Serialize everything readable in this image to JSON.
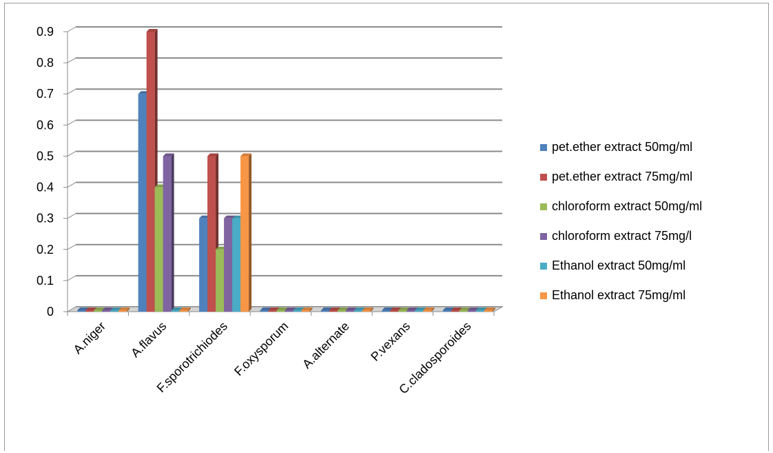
{
  "chart_data": {
    "type": "bar",
    "title": "",
    "xlabel": "",
    "ylabel": "",
    "ylim": [
      0,
      0.9
    ],
    "yticks": [
      "0",
      "0.1",
      "0.2",
      "0.3",
      "0.4",
      "0.5",
      "0.6",
      "0.7",
      "0.8",
      "0.9"
    ],
    "grid": true,
    "legend_position": "right",
    "categories": [
      "A.niger",
      "A.flavus",
      "F.sporotrichiodes",
      "F.oxysporum",
      "A.alternate",
      "P.vexans",
      "C.cladosporoides"
    ],
    "series": [
      {
        "name": "pet.ether extract 50mg/ml",
        "color": "#4F81BD",
        "values": [
          0,
          0.7,
          0.3,
          0,
          0,
          0,
          0
        ]
      },
      {
        "name": "pet.ether extract 75mg/ml",
        "color": "#C0504D",
        "values": [
          0,
          0.9,
          0.5,
          0,
          0,
          0,
          0
        ]
      },
      {
        "name": "chloroform extract 50mg/ml",
        "color": "#9BBB59",
        "values": [
          0,
          0.4,
          0.2,
          0,
          0,
          0,
          0
        ]
      },
      {
        "name": "chloroform extract 75mg/l",
        "color": "#8064A2",
        "values": [
          0,
          0.5,
          0.3,
          0,
          0,
          0,
          0
        ]
      },
      {
        "name": "Ethanol extract 50mg/ml",
        "color": "#4BACC6",
        "values": [
          0,
          0,
          0.3,
          0,
          0,
          0,
          0
        ]
      },
      {
        "name": "Ethanol extract 75mg/ml",
        "color": "#F79646",
        "values": [
          0,
          0,
          0.5,
          0,
          0,
          0,
          0
        ]
      }
    ]
  }
}
